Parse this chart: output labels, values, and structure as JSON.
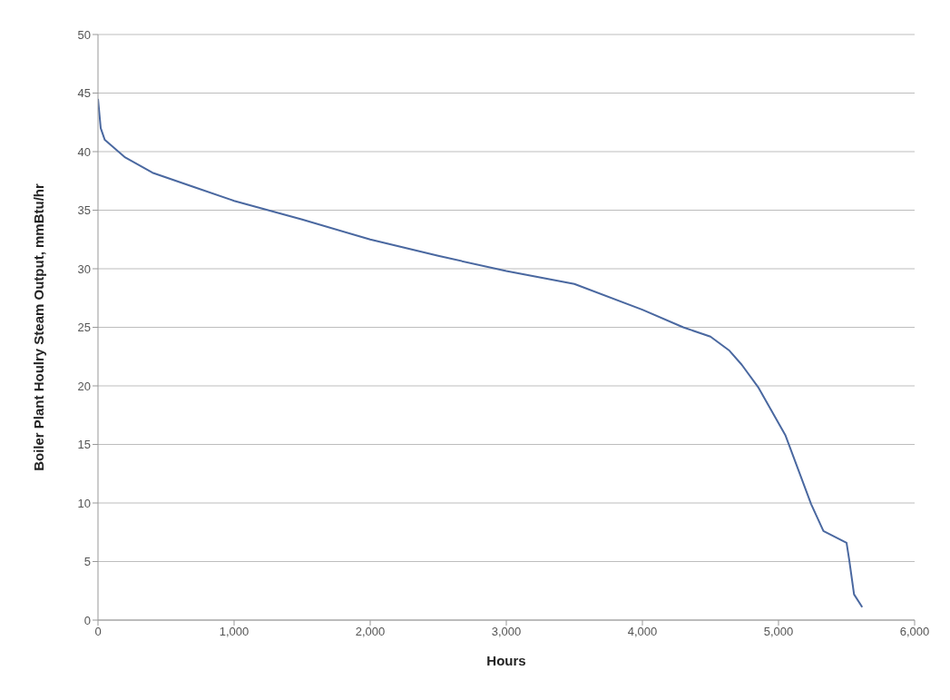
{
  "chart_data": {
    "type": "line",
    "xlabel": "Hours",
    "ylabel": "Boiler Plant Houlry Steam Output, mmBtu/hr",
    "x": [
      0,
      20,
      50,
      100,
      200,
      400,
      700,
      1000,
      1500,
      2000,
      2500,
      3000,
      3500,
      4000,
      4300,
      4500,
      4640,
      4730,
      4850,
      5050,
      5240,
      5330,
      5500,
      5520,
      5555,
      5615
    ],
    "series": [
      {
        "color": "#4a68a0",
        "values": [
          44.5,
          42,
          41,
          40.5,
          39.5,
          38.2,
          37,
          35.8,
          34.2,
          32.5,
          31.1,
          29.8,
          28.7,
          26.5,
          25,
          24.2,
          23,
          21.8,
          19.9,
          15.8,
          9.9,
          7.6,
          6.6,
          5.1,
          2.2,
          1.1
        ]
      }
    ],
    "xlim": [
      0,
      6000
    ],
    "xticks": [
      {
        "value": 0,
        "label": "0"
      },
      {
        "value": 1000,
        "label": "1,000"
      },
      {
        "value": 2000,
        "label": "2,000"
      },
      {
        "value": 3000,
        "label": "3,000"
      },
      {
        "value": 4000,
        "label": "4,000"
      },
      {
        "value": 5000,
        "label": "5,000"
      },
      {
        "value": 6000,
        "label": "6,000"
      }
    ],
    "ylim": [
      0,
      50
    ],
    "yticks": [
      0,
      5,
      10,
      15,
      20,
      25,
      30,
      35,
      40,
      45,
      50
    ],
    "grid": "y",
    "marker": "none",
    "line_style": "solid"
  }
}
